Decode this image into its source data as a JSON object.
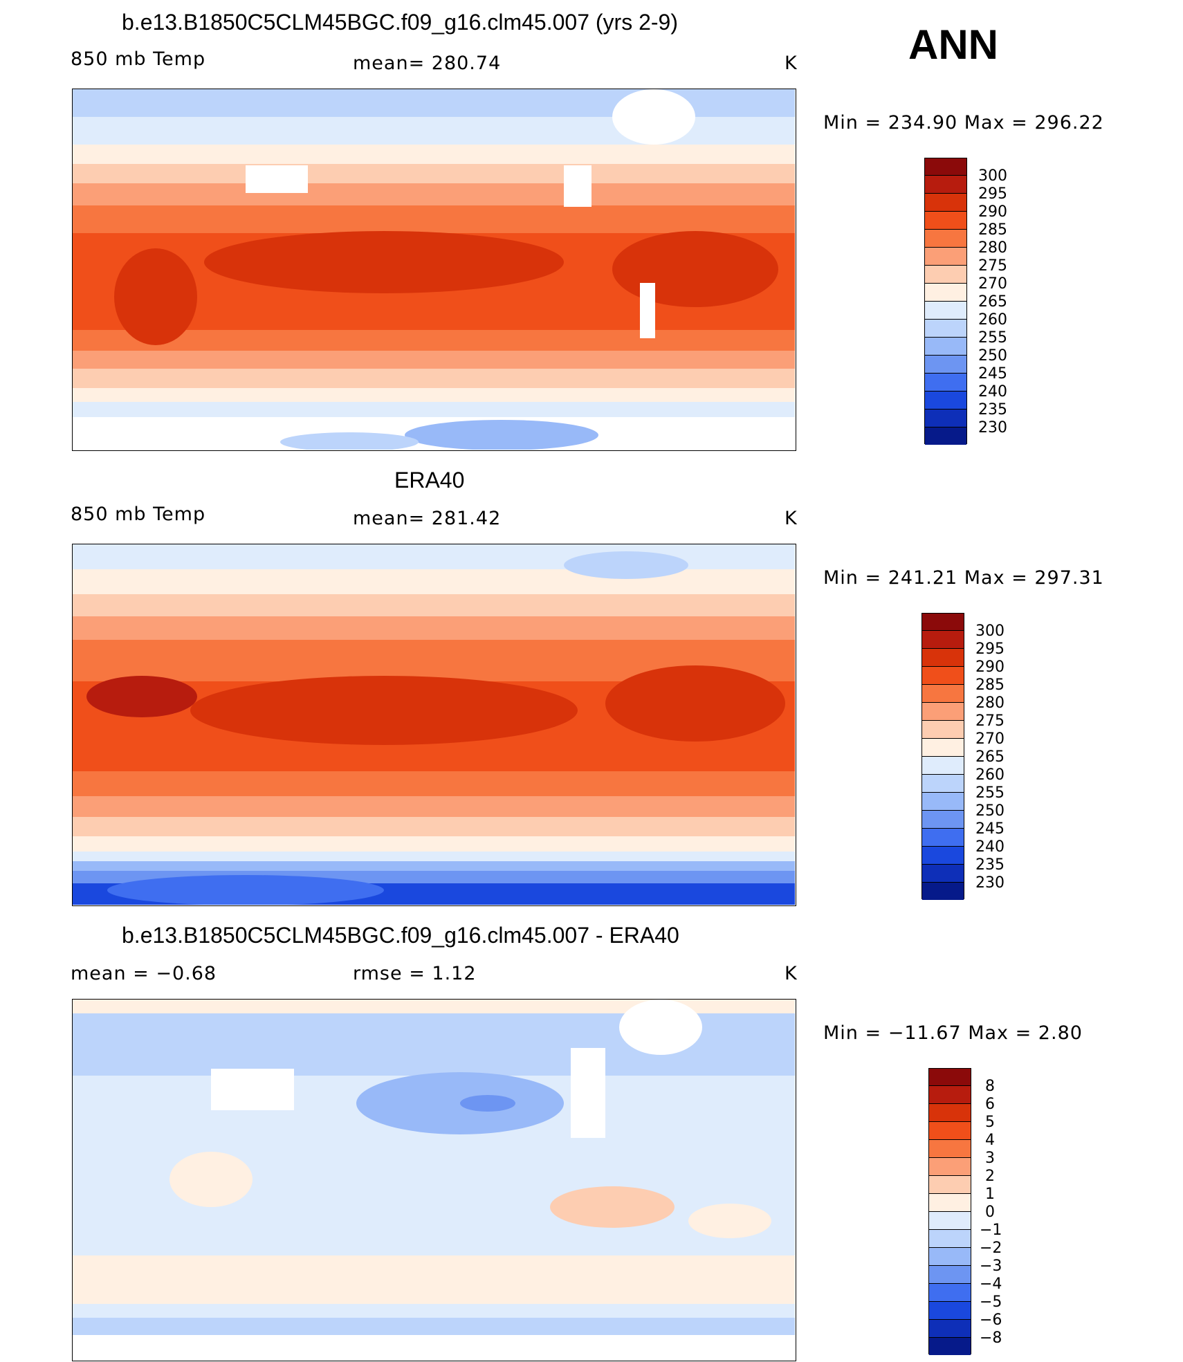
{
  "season": "ANN",
  "panels": [
    {
      "title": "b.e13.B1850C5CLM45BGC.f09_g16.clm45.007 (yrs 2-9)",
      "left_label": "850 mb Temp",
      "center_label": "mean= 280.74",
      "units": "K",
      "minmax": "Min = 234.90 Max = 296.22",
      "colorbar_ticks": [
        "300",
        "295",
        "290",
        "285",
        "280",
        "275",
        "270",
        "265",
        "260",
        "255",
        "250",
        "245",
        "240",
        "235",
        "230"
      ]
    },
    {
      "title": "ERA40",
      "left_label": "850 mb Temp",
      "center_label": "mean= 281.42",
      "units": "K",
      "minmax": "Min = 241.21 Max = 297.31",
      "colorbar_ticks": [
        "300",
        "295",
        "290",
        "285",
        "280",
        "275",
        "270",
        "265",
        "260",
        "255",
        "250",
        "245",
        "240",
        "235",
        "230"
      ]
    },
    {
      "title": "b.e13.B1850C5CLM45BGC.f09_g16.clm45.007 - ERA40",
      "left_label": "mean =   −0.68",
      "center_label": "rmse =    1.12",
      "units": "K",
      "minmax": "Min = −11.67 Max =    2.80",
      "colorbar_ticks": [
        "8",
        "6",
        "5",
        "4",
        "3",
        "2",
        "1",
        "0",
        "−1",
        "−2",
        "−3",
        "−4",
        "−5",
        "−6",
        "−8"
      ]
    }
  ],
  "temp_colors": [
    "#8b0a0a",
    "#b71c0e",
    "#d8330a",
    "#f04f1a",
    "#f77640",
    "#fb9f77",
    "#fdcdb1",
    "#fff0e2",
    "#dfecfc",
    "#bcd4fb",
    "#98b9f8",
    "#6d95f2",
    "#3f6ef0",
    "#1a48de",
    "#0e2fb8",
    "#061a8a"
  ],
  "diff_colors": [
    "#8b0a0a",
    "#b71c0e",
    "#d8330a",
    "#f04f1a",
    "#f77640",
    "#fb9f77",
    "#fdcdb1",
    "#fff0e2",
    "#dfecfc",
    "#bcd4fb",
    "#98b9f8",
    "#6d95f2",
    "#3f6ef0",
    "#1a48de",
    "#0e2fb8",
    "#061a8a"
  ]
}
